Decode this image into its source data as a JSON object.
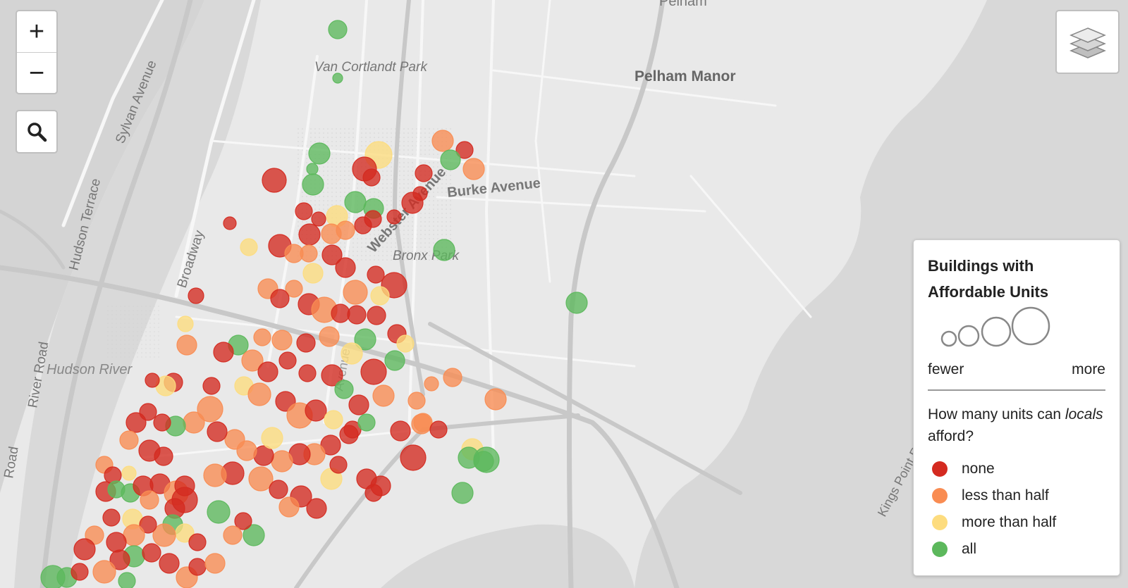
{
  "map": {
    "labels": {
      "pelham": "Pelham",
      "van_cortlandt": "Van Cortlandt Park",
      "pelham_manor": "Pelham Manor",
      "sylvan": "Sylvan Avenue",
      "hudson_terrace": "Hudson Terrace",
      "broadway": "Broadway",
      "burke": "Burke Avenue",
      "webster": "Webster Avenue",
      "bronx_park": "Bronx Park",
      "hudson_river": "Hudson River",
      "river_road": "River Road",
      "road": "Road",
      "kings_point": "Kings Point Road",
      "avenue_fragment": "Avenue"
    },
    "colors": {
      "none": "#d42a20",
      "less": "#f98c52",
      "more": "#fddc7e",
      "all": "#5cb85c"
    }
  },
  "controls": {
    "zoom_in": "+",
    "zoom_out": "−",
    "search_icon": "search-icon",
    "layers_icon": "layers-icon"
  },
  "legend": {
    "title": "Buildings with Affordable Units",
    "size_low": "fewer",
    "size_high": "more",
    "question_pre": "How many units can ",
    "question_em": "locals",
    "question_post": " afford?",
    "items": [
      {
        "label": "none",
        "color": "#d42a20"
      },
      {
        "label": "less than half",
        "color": "#f98c52"
      },
      {
        "label": "more than half",
        "color": "#fddc7e"
      },
      {
        "label": "all",
        "color": "#5cb85c"
      }
    ]
  }
}
